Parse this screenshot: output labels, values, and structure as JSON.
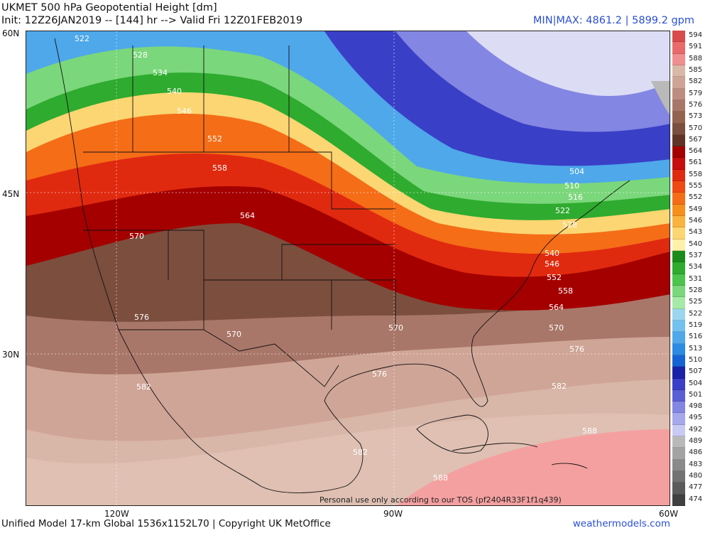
{
  "header": {
    "title": "UKMET 500 hPa Geopotential Height [dm]",
    "init": "Init: 12Z26JAN2019 -- [144] hr --> Valid Fri 12Z01FEB2019",
    "minmax": "MIN|MAX: 4861.2 | 5899.2 gpm"
  },
  "footer": {
    "model": "Unified Model 17-km Global 1536x1152L70 | Copyright UK MetOffice",
    "site": "weathermodels.com",
    "tos": "Personal use only according to our TOS (pf2404R33F1f1q439)"
  },
  "axes": {
    "lat_labels": [
      "60N",
      "45N",
      "30N"
    ],
    "lon_labels": [
      "120W",
      "90W",
      "60W"
    ]
  },
  "legend": {
    "levels": [
      "594",
      "591",
      "588",
      "585",
      "582",
      "579",
      "576",
      "573",
      "570",
      "567",
      "564",
      "561",
      "558",
      "555",
      "552",
      "549",
      "546",
      "543",
      "540",
      "537",
      "534",
      "531",
      "528",
      "525",
      "522",
      "519",
      "516",
      "513",
      "510",
      "507",
      "504",
      "501",
      "498",
      "495",
      "492",
      "489",
      "486",
      "483",
      "480",
      "477",
      "474"
    ],
    "colors": [
      "#d94a4a",
      "#e96a6a",
      "#f08f8f",
      "#d9b8a8",
      "#cfa597",
      "#bd8e80",
      "#a97769",
      "#94634f",
      "#7c4e3e",
      "#5f3426",
      "#a40000",
      "#c80d0d",
      "#e02a10",
      "#ef4a14",
      "#f56d17",
      "#f78f1c",
      "#f9b33f",
      "#fbd673",
      "#fdf0a8",
      "#1b8b1b",
      "#2fab2f",
      "#4dc44d",
      "#7bd77b",
      "#a7e9a7",
      "#9ad6f0",
      "#73c1ef",
      "#4ea8ea",
      "#2c8be2",
      "#1664d4",
      "#1a22a8",
      "#3a3fc7",
      "#5a5fd5",
      "#8386e2",
      "#a6a8ec",
      "#c9caf4",
      "#b9b9b9",
      "#a3a3a3",
      "#8a8a8a",
      "#727272",
      "#5b5b5b",
      "#404040"
    ]
  },
  "contour_labels": [
    {
      "text": "522"
    },
    {
      "text": "528"
    },
    {
      "text": "534"
    },
    {
      "text": "540"
    },
    {
      "text": "546"
    },
    {
      "text": "552"
    },
    {
      "text": "558"
    },
    {
      "text": "564"
    },
    {
      "text": "570"
    },
    {
      "text": "576"
    },
    {
      "text": "570"
    },
    {
      "text": "582"
    },
    {
      "text": "570"
    },
    {
      "text": "576"
    },
    {
      "text": "582"
    },
    {
      "text": "504"
    },
    {
      "text": "510"
    },
    {
      "text": "516"
    },
    {
      "text": "522"
    },
    {
      "text": "528"
    },
    {
      "text": "540"
    },
    {
      "text": "546"
    },
    {
      "text": "552"
    },
    {
      "text": "558"
    },
    {
      "text": "564"
    },
    {
      "text": "570"
    },
    {
      "text": "576"
    },
    {
      "text": "582"
    },
    {
      "text": "588"
    },
    {
      "text": "588"
    }
  ]
}
